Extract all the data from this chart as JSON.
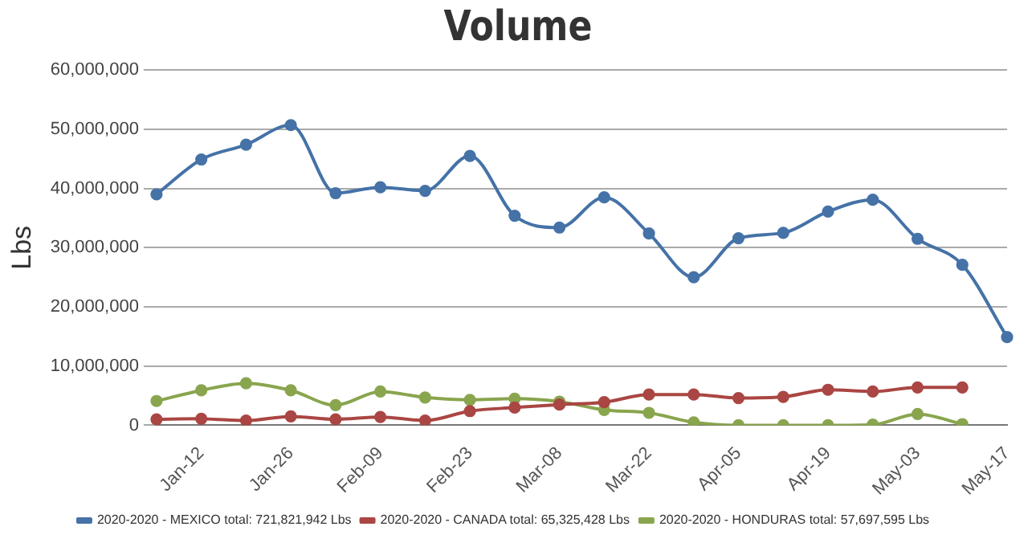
{
  "chart_data": {
    "type": "line",
    "title": "Volume",
    "ylabel": "Lbs",
    "categories": [
      null,
      "Jan-12",
      null,
      "Jan-26",
      null,
      "Feb-09",
      null,
      "Feb-23",
      null,
      "Mar-08",
      null,
      "Mar-22",
      null,
      "Apr-05",
      null,
      "Apr-19",
      null,
      "May-03",
      null,
      "May-17"
    ],
    "series": [
      {
        "name": "2020-2020 - MEXICO total: 721,821,942 Lbs",
        "color": "#4572a7",
        "values": [
          39000000,
          44900000,
          47400000,
          50700000,
          39200000,
          40200000,
          39600000,
          45500000,
          35400000,
          33400000,
          38500000,
          32400000,
          25000000,
          31600000,
          32500000,
          36100000,
          38100000,
          31500000,
          27100000,
          14900000
        ]
      },
      {
        "name": "2020-2020 - CANADA total: 65,325,428 Lbs",
        "color": "#aa4643",
        "values": [
          1000000,
          1100000,
          800000,
          1500000,
          1000000,
          1400000,
          800000,
          2400000,
          3000000,
          3500000,
          3900000,
          5200000,
          5200000,
          4600000,
          4800000,
          6000000,
          5700000,
          6400000,
          6400000,
          null
        ]
      },
      {
        "name": "2020-2020 - HONDURAS total: 57,697,595 Lbs",
        "color": "#89a54e",
        "values": [
          4100000,
          5900000,
          7100000,
          5900000,
          3400000,
          5700000,
          4700000,
          4300000,
          4500000,
          4000000,
          2600000,
          2100000,
          500000,
          0,
          0,
          0,
          100000,
          1900000,
          200000,
          null
        ]
      }
    ],
    "ylim": [
      0,
      60000000
    ],
    "yticks": [
      0,
      {
        "value": 10000000,
        "label": "10,000,000"
      },
      {
        "value": 20000000,
        "label": "20,000,000"
      },
      {
        "value": 30000000,
        "label": "30,000,000"
      },
      {
        "value": 40000000,
        "label": "40,000,000"
      },
      {
        "value": 50000000,
        "label": "50,000,000"
      },
      {
        "value": 60000000,
        "label": "60,000,000"
      }
    ],
    "grid": "y",
    "legend": "bottom",
    "marker": "circle",
    "line_style": "solid"
  }
}
